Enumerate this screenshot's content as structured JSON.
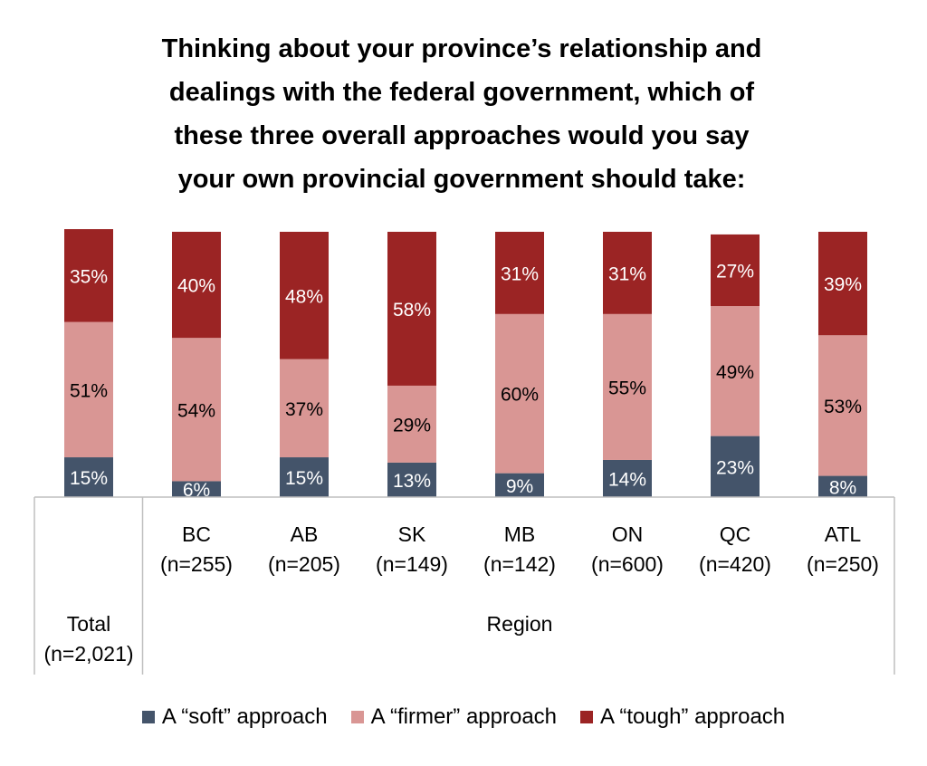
{
  "chart_data": {
    "type": "bar",
    "stacked": true,
    "title": "Thinking about your province’s relationship and\ndealings with the federal government, which of\nthese three overall approaches would you say\nyour own provincial government should take:",
    "categories": [
      "Total\n(n=2,021)",
      "BC\n(n=255)",
      "AB\n(n=205)",
      "SK\n(n=149)",
      "MB\n(n=142)",
      "ON\n(n=600)",
      "QC\n(n=420)",
      "ATL\n(n=250)"
    ],
    "group_labels": [
      {
        "label": "Region",
        "from": 1,
        "to": 7
      }
    ],
    "series": [
      {
        "name": "A “soft” approach",
        "color": "#44546a",
        "values": [
          15,
          6,
          15,
          13,
          9,
          14,
          23,
          8
        ],
        "labels": [
          "15%",
          "6%",
          "15%",
          "13%",
          "9%",
          "14%",
          "23%",
          "8%"
        ]
      },
      {
        "name": "A “firmer” approach",
        "color": "#d99694",
        "values": [
          51,
          54,
          37,
          29,
          60,
          55,
          49,
          53
        ],
        "labels": [
          "51%",
          "54%",
          "37%",
          "29%",
          "60%",
          "55%",
          "49%",
          "53%"
        ]
      },
      {
        "name": "A “tough” approach",
        "color": "#9b2424",
        "values": [
          35,
          40,
          48,
          58,
          31,
          31,
          27,
          39
        ],
        "labels": [
          "35%",
          "40%",
          "48%",
          "58%",
          "31%",
          "31%",
          "27%",
          "39%"
        ]
      }
    ],
    "ylim": [
      0,
      100
    ],
    "legend_position": "bottom",
    "grid": false
  }
}
